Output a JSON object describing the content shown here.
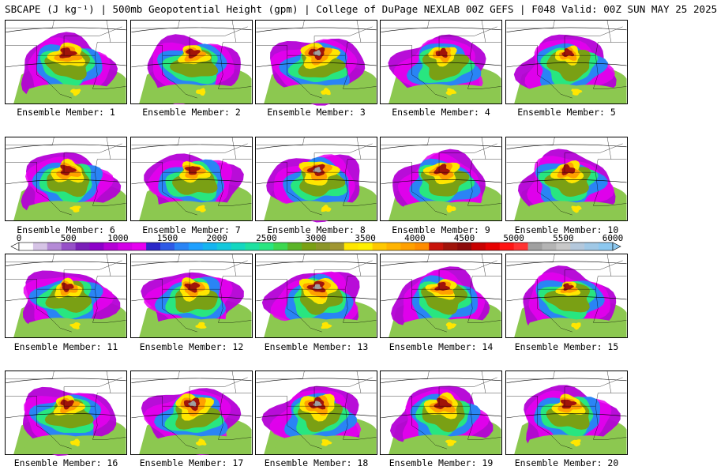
{
  "title": "SBCAPE (J kg⁻¹) | 500mb Geopotential Height (gpm) | College of DuPage NEXLAB 00Z GEFS | F048 Valid: 00Z SUN MAY 25 2025",
  "legend": {
    "ticks": [
      "0",
      "500",
      "1000",
      "1500",
      "2000",
      "2500",
      "3000",
      "3500",
      "4000",
      "4500",
      "5000",
      "5500",
      "6000"
    ],
    "tick_values": [
      0,
      500,
      1000,
      1500,
      2000,
      2500,
      3000,
      3500,
      4000,
      4500,
      5000,
      5500,
      6000
    ],
    "colors": [
      "#ffffff",
      "#d6c4e6",
      "#b48ad6",
      "#9650c8",
      "#7a1fb8",
      "#8d00c9",
      "#b400d6",
      "#d300e6",
      "#e600f0",
      "#2c28c8",
      "#2e5ae6",
      "#2a84f5",
      "#1ea0ff",
      "#14b4f0",
      "#14c8dc",
      "#14d7c0",
      "#1ee1a0",
      "#28e680",
      "#3cd850",
      "#5ab428",
      "#7aa014",
      "#8c9628",
      "#a09632",
      "#ffe600",
      "#fff000",
      "#ffc800",
      "#ffb400",
      "#ffa000",
      "#ff8c00",
      "#c8140a",
      "#a0140a",
      "#8c0a0a",
      "#c80000",
      "#e60000",
      "#ff1414",
      "#ff3232",
      "#a0a0a0",
      "#b4b4b4",
      "#c8c8c8",
      "#b4c8dc",
      "#a0c8e6",
      "#8cc8f0"
    ]
  },
  "members": [
    {
      "label": "Ensemble Member: 1",
      "peak": 0.95
    },
    {
      "label": "Ensemble Member: 2",
      "peak": 0.8
    },
    {
      "label": "Ensemble Member: 3",
      "peak": 1.0
    },
    {
      "label": "Ensemble Member: 4",
      "peak": 0.75
    },
    {
      "label": "Ensemble Member: 5",
      "peak": 0.7
    },
    {
      "label": "Ensemble Member: 6",
      "peak": 0.9
    },
    {
      "label": "Ensemble Member: 7",
      "peak": 0.8
    },
    {
      "label": "Ensemble Member: 8",
      "peak": 1.0
    },
    {
      "label": "Ensemble Member: 9",
      "peak": 0.9
    },
    {
      "label": "Ensemble Member: 10",
      "peak": 0.85
    },
    {
      "label": "Ensemble Member: 11",
      "peak": 0.75
    },
    {
      "label": "Ensemble Member: 12",
      "peak": 0.85
    },
    {
      "label": "Ensemble Member: 13",
      "peak": 1.0
    },
    {
      "label": "Ensemble Member: 14",
      "peak": 0.8
    },
    {
      "label": "Ensemble Member: 15",
      "peak": 0.6
    },
    {
      "label": "Ensemble Member: 16",
      "peak": 0.8
    },
    {
      "label": "Ensemble Member: 17",
      "peak": 1.0
    },
    {
      "label": "Ensemble Member: 18",
      "peak": 1.0
    },
    {
      "label": "Ensemble Member: 19",
      "peak": 0.95
    },
    {
      "label": "Ensemble Member: 20",
      "peak": 0.85
    }
  ]
}
